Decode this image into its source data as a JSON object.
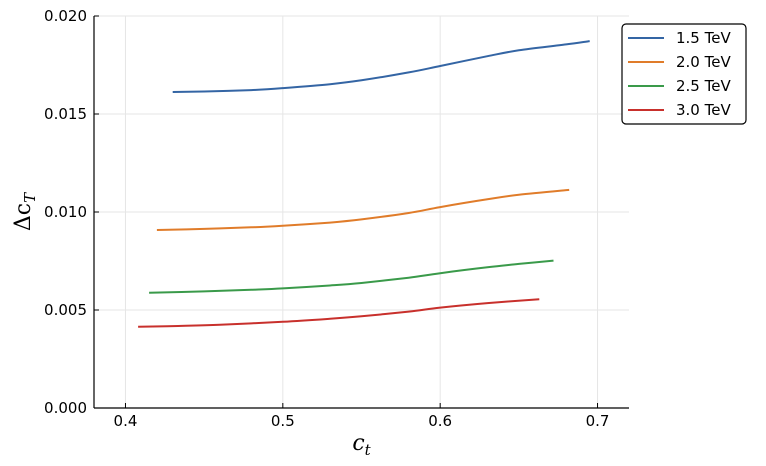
{
  "chart_data": {
    "type": "line",
    "xlabel": "c",
    "xlabel_sub": "t",
    "ylabel": "Δc",
    "ylabel_sub": "T",
    "xlim": [
      0.38,
      0.72
    ],
    "ylim": [
      0.0,
      0.02
    ],
    "xticks": [
      0.4,
      0.5,
      0.6,
      0.7
    ],
    "xtick_labels": [
      "0.4",
      "0.5",
      "0.6",
      "0.7"
    ],
    "yticks": [
      0.0,
      0.005,
      0.01,
      0.015,
      0.02
    ],
    "ytick_labels": [
      "0.000",
      "0.005",
      "0.010",
      "0.015",
      "0.020"
    ],
    "grid": true,
    "legend_position": "top-right (outside)",
    "series": [
      {
        "name": "1.5 TeV",
        "color": "#3465a4",
        "x": [
          0.43,
          0.45,
          0.48,
          0.5,
          0.53,
          0.55,
          0.58,
          0.6,
          0.63,
          0.65,
          0.68,
          0.695
        ],
        "y": [
          0.01612,
          0.01615,
          0.01622,
          0.01632,
          0.01652,
          0.01672,
          0.01712,
          0.01745,
          0.01795,
          0.01825,
          0.01855,
          0.01872
        ]
      },
      {
        "name": "2.0 TeV",
        "color": "#e07c2a",
        "x": [
          0.42,
          0.45,
          0.48,
          0.5,
          0.53,
          0.55,
          0.58,
          0.6,
          0.63,
          0.65,
          0.682
        ],
        "y": [
          0.00908,
          0.00914,
          0.00922,
          0.0093,
          0.00946,
          0.00962,
          0.00995,
          0.01025,
          0.01065,
          0.01088,
          0.01113
        ]
      },
      {
        "name": "2.5 TeV",
        "color": "#3a9a4a",
        "x": [
          0.415,
          0.45,
          0.48,
          0.5,
          0.53,
          0.55,
          0.58,
          0.6,
          0.63,
          0.65,
          0.672
        ],
        "y": [
          0.00588,
          0.00595,
          0.00603,
          0.0061,
          0.00625,
          0.00638,
          0.00665,
          0.00688,
          0.00718,
          0.00735,
          0.00752
        ]
      },
      {
        "name": "3.0 TeV",
        "color": "#c8302c",
        "x": [
          0.408,
          0.43,
          0.46,
          0.5,
          0.53,
          0.55,
          0.58,
          0.6,
          0.63,
          0.663
        ],
        "y": [
          0.00415,
          0.00418,
          0.00425,
          0.0044,
          0.00455,
          0.00468,
          0.00492,
          0.00512,
          0.00535,
          0.00555
        ]
      }
    ]
  }
}
